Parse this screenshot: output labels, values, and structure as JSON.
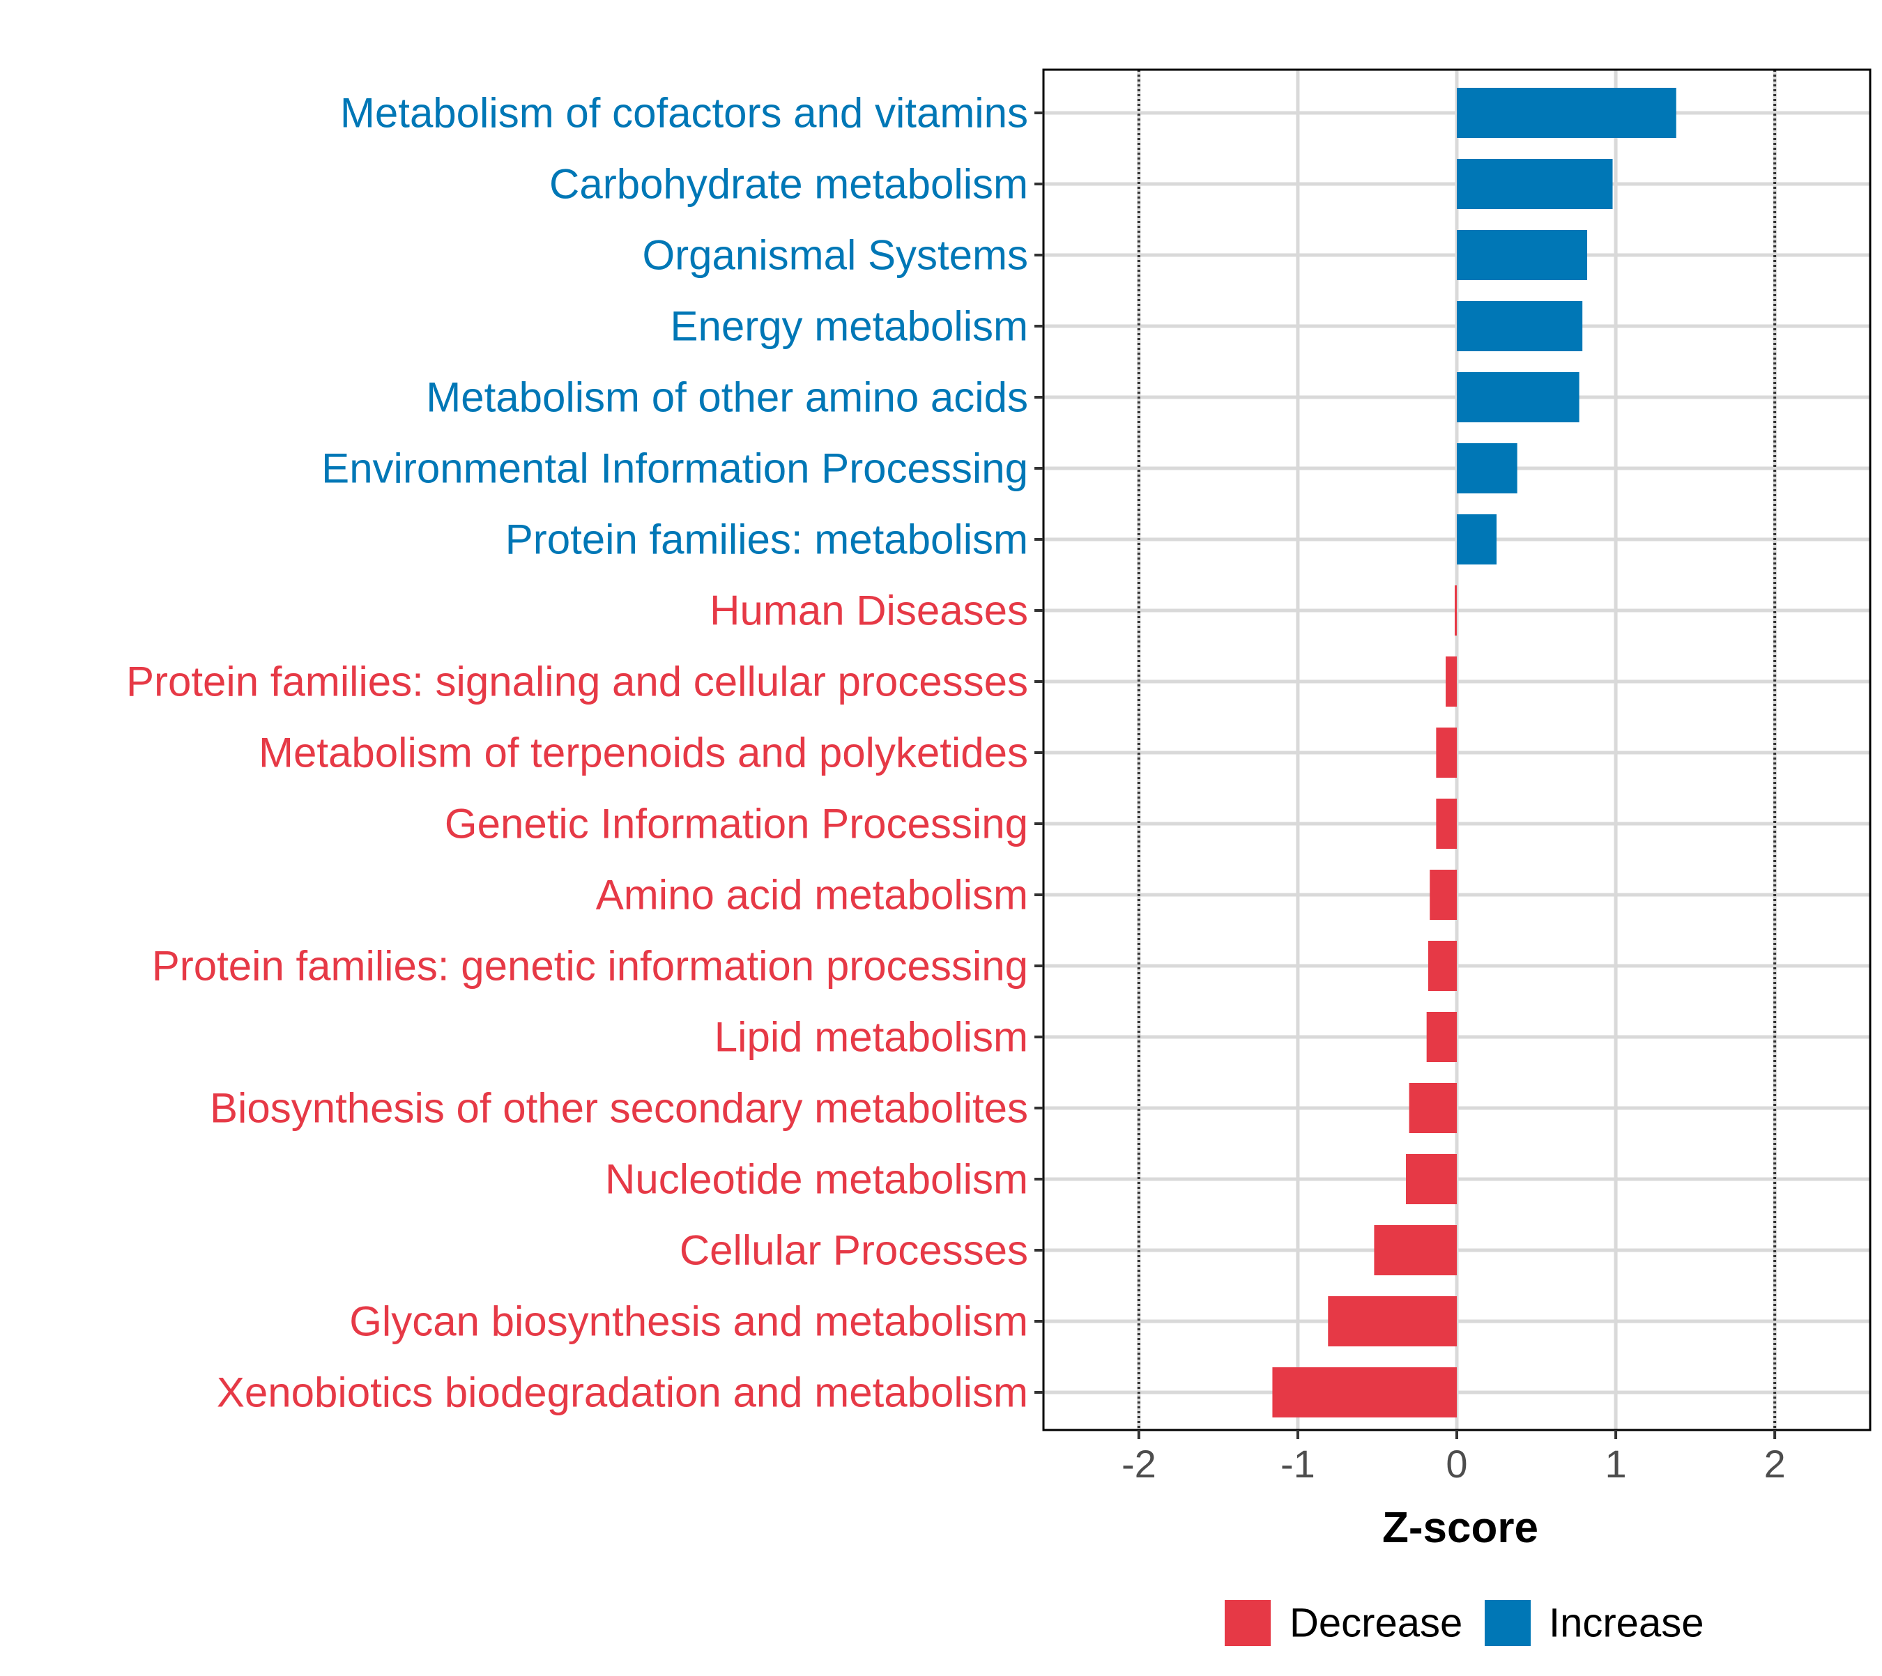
{
  "chart_data": {
    "type": "bar",
    "orientation": "horizontal",
    "title": "",
    "xlabel": "Z-score",
    "ylabel": "",
    "xlim": [
      -2.6,
      2.6
    ],
    "xticks": [
      -2,
      -1,
      0,
      1,
      2
    ],
    "x_tick_labels": [
      "-2",
      "-1",
      "0",
      "1",
      "2"
    ],
    "reference_lines": [
      -2,
      2
    ],
    "grid": true,
    "legend_position": "bottom",
    "colors": {
      "Decrease": "#E63946",
      "Increase": "#0077B6"
    },
    "legend": [
      {
        "label": "Decrease",
        "color": "#E63946"
      },
      {
        "label": "Increase",
        "color": "#0077B6"
      }
    ],
    "categories": [
      "Metabolism of cofactors and vitamins",
      "Carbohydrate metabolism",
      "Organismal Systems",
      "Energy metabolism",
      "Metabolism of other amino acids",
      "Environmental Information Processing",
      "Protein families: metabolism",
      "Human Diseases",
      "Protein families: signaling and cellular processes",
      "Metabolism of terpenoids and polyketides",
      "Genetic Information Processing",
      "Amino acid metabolism",
      "Protein families: genetic information processing",
      "Lipid metabolism",
      "Biosynthesis of other secondary metabolites",
      "Nucleotide metabolism",
      "Cellular Processes",
      "Glycan biosynthesis and metabolism",
      "Xenobiotics biodegradation and metabolism"
    ],
    "values": [
      1.38,
      0.98,
      0.82,
      0.79,
      0.77,
      0.38,
      0.25,
      -0.01,
      -0.07,
      -0.13,
      -0.13,
      -0.17,
      -0.18,
      -0.19,
      -0.3,
      -0.32,
      -0.52,
      -0.81,
      -1.16
    ],
    "groups": [
      "Increase",
      "Increase",
      "Increase",
      "Increase",
      "Increase",
      "Increase",
      "Increase",
      "Decrease",
      "Decrease",
      "Decrease",
      "Decrease",
      "Decrease",
      "Decrease",
      "Decrease",
      "Decrease",
      "Decrease",
      "Decrease",
      "Decrease",
      "Decrease"
    ]
  }
}
